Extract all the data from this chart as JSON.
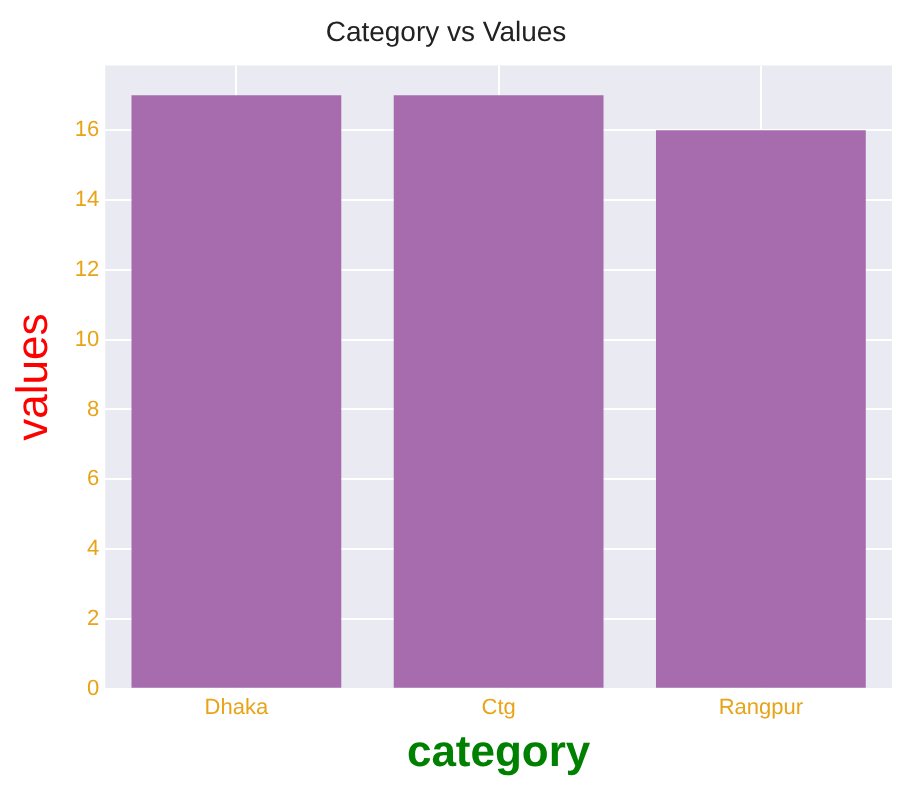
{
  "chart_data": {
    "type": "bar",
    "title": "Category vs Values",
    "xlabel": "category",
    "ylabel": "values",
    "categories": [
      "Dhaka",
      "Ctg",
      "Rangpur"
    ],
    "values": [
      17,
      17,
      16
    ],
    "color": "#a66cae",
    "ylim": [
      0,
      17.85
    ],
    "yticks": [
      0,
      2,
      4,
      6,
      8,
      10,
      12,
      14,
      16
    ],
    "grid": true,
    "legend": false
  }
}
